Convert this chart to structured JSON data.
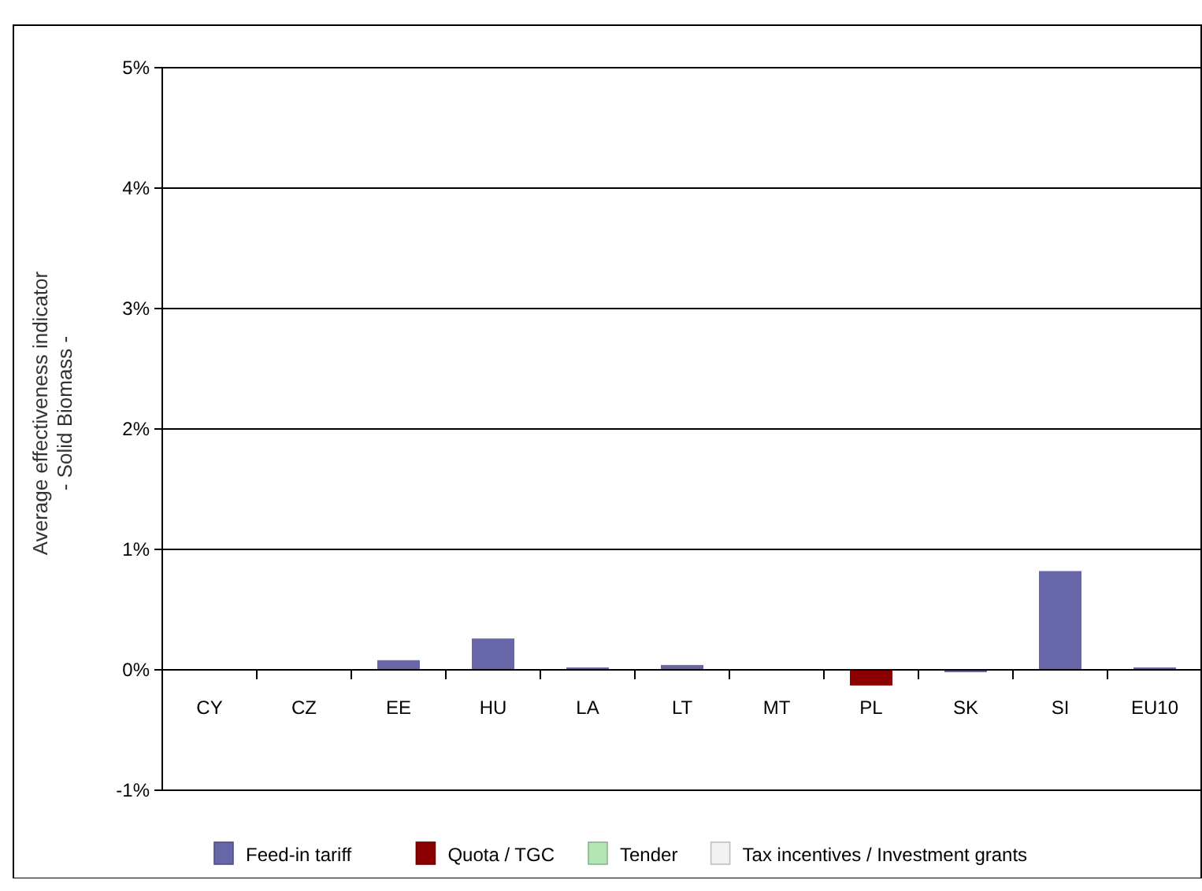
{
  "chart_data": {
    "type": "bar",
    "ylabel": "Average effectiveness indicator\n- Solid Biomass -",
    "categories": [
      "CY",
      "CZ",
      "EE",
      "HU",
      "LA",
      "LT",
      "MT",
      "PL",
      "SK",
      "SI",
      "EU10"
    ],
    "series": [
      {
        "name": "Feed-in tariff",
        "color": "#6666a8",
        "values": [
          null,
          null,
          0.08,
          0.26,
          0.02,
          0.04,
          null,
          null,
          -0.02,
          0.82,
          0.02
        ]
      },
      {
        "name": "Quota / TGC",
        "color": "#8b0000",
        "values": [
          null,
          null,
          null,
          null,
          null,
          null,
          null,
          -0.13,
          null,
          null,
          null
        ]
      },
      {
        "name": "Tender",
        "color": "#b3e6b3",
        "values": [
          null,
          null,
          null,
          null,
          null,
          null,
          null,
          null,
          null,
          null,
          null
        ]
      },
      {
        "name": "Tax incentives / Investment grants",
        "color": "#f2f2f2",
        "values": [
          null,
          null,
          null,
          null,
          null,
          null,
          null,
          null,
          null,
          null,
          null
        ]
      }
    ],
    "ylim": [
      -1,
      5
    ],
    "yticks": [
      {
        "value": -1,
        "label": "-1%"
      },
      {
        "value": 0,
        "label": "0%"
      },
      {
        "value": 1,
        "label": "1%"
      },
      {
        "value": 2,
        "label": "2%"
      },
      {
        "value": 3,
        "label": "3%"
      },
      {
        "value": 4,
        "label": "4%"
      },
      {
        "value": 5,
        "label": "5%"
      }
    ],
    "grid": "y",
    "legend": "bottom"
  }
}
